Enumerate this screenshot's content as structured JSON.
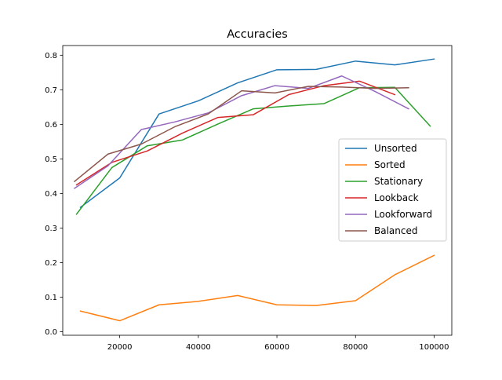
{
  "chart_data": {
    "type": "line",
    "title": "Accuracies",
    "xlabel": "",
    "ylabel": "",
    "xlim": [
      5500,
      104500
    ],
    "ylim": [
      -0.01,
      0.828
    ],
    "xticks": [
      20000,
      40000,
      60000,
      80000,
      100000
    ],
    "yticks": [
      0.0,
      0.1,
      0.2,
      0.3,
      0.4,
      0.5,
      0.6,
      0.7,
      0.8
    ],
    "xtick_labels": [
      "20000",
      "40000",
      "60000",
      "80000",
      "100000"
    ],
    "ytick_labels": [
      "0.0",
      "0.1",
      "0.2",
      "0.3",
      "0.4",
      "0.5",
      "0.6",
      "0.7",
      "0.8"
    ],
    "grid": false,
    "legend_position": "center-right",
    "series": [
      {
        "name": "Unsorted",
        "color": "#1f77b4",
        "points": [
          [
            10000,
            0.36
          ],
          [
            20000,
            0.445
          ],
          [
            30000,
            0.63
          ],
          [
            40000,
            0.668
          ],
          [
            50000,
            0.72
          ],
          [
            60000,
            0.758
          ],
          [
            70000,
            0.759
          ],
          [
            80000,
            0.783
          ],
          [
            90000,
            0.772
          ],
          [
            100000,
            0.789
          ]
        ]
      },
      {
        "name": "Sorted",
        "color": "#ff7f0e",
        "points": [
          [
            10000,
            0.06
          ],
          [
            20000,
            0.032
          ],
          [
            30000,
            0.078
          ],
          [
            40000,
            0.088
          ],
          [
            50000,
            0.105
          ],
          [
            60000,
            0.078
          ],
          [
            70000,
            0.076
          ],
          [
            80000,
            0.09
          ],
          [
            90000,
            0.165
          ],
          [
            100000,
            0.221
          ]
        ]
      },
      {
        "name": "Stationary",
        "color": "#2ca02c",
        "points": [
          [
            9000,
            0.34
          ],
          [
            18000,
            0.475
          ],
          [
            27000,
            0.538
          ],
          [
            36000,
            0.555
          ],
          [
            45000,
            0.601
          ],
          [
            54000,
            0.645
          ],
          [
            63000,
            0.653
          ],
          [
            72000,
            0.66
          ],
          [
            81000,
            0.706
          ],
          [
            90000,
            0.707
          ],
          [
            99000,
            0.595
          ]
        ]
      },
      {
        "name": "Lookback",
        "color": "#d62728",
        "points": [
          [
            9000,
            0.425
          ],
          [
            18000,
            0.49
          ],
          [
            27000,
            0.523
          ],
          [
            36000,
            0.575
          ],
          [
            45000,
            0.62
          ],
          [
            54000,
            0.628
          ],
          [
            63000,
            0.686
          ],
          [
            72000,
            0.712
          ],
          [
            81000,
            0.725
          ],
          [
            90000,
            0.686
          ]
        ]
      },
      {
        "name": "Lookforward",
        "color": "#9467bd",
        "points": [
          [
            8500,
            0.415
          ],
          [
            17000,
            0.48
          ],
          [
            25500,
            0.585
          ],
          [
            34000,
            0.607
          ],
          [
            42500,
            0.633
          ],
          [
            51000,
            0.683
          ],
          [
            59500,
            0.712
          ],
          [
            68000,
            0.704
          ],
          [
            76500,
            0.74
          ],
          [
            85000,
            0.695
          ],
          [
            93500,
            0.645
          ]
        ]
      },
      {
        "name": "Balanced",
        "color": "#8c564b",
        "points": [
          [
            8500,
            0.435
          ],
          [
            17000,
            0.514
          ],
          [
            25500,
            0.543
          ],
          [
            34000,
            0.593
          ],
          [
            42500,
            0.63
          ],
          [
            51000,
            0.697
          ],
          [
            59500,
            0.691
          ],
          [
            68000,
            0.71
          ],
          [
            76500,
            0.708
          ],
          [
            85000,
            0.704
          ],
          [
            93500,
            0.706
          ]
        ]
      }
    ]
  }
}
